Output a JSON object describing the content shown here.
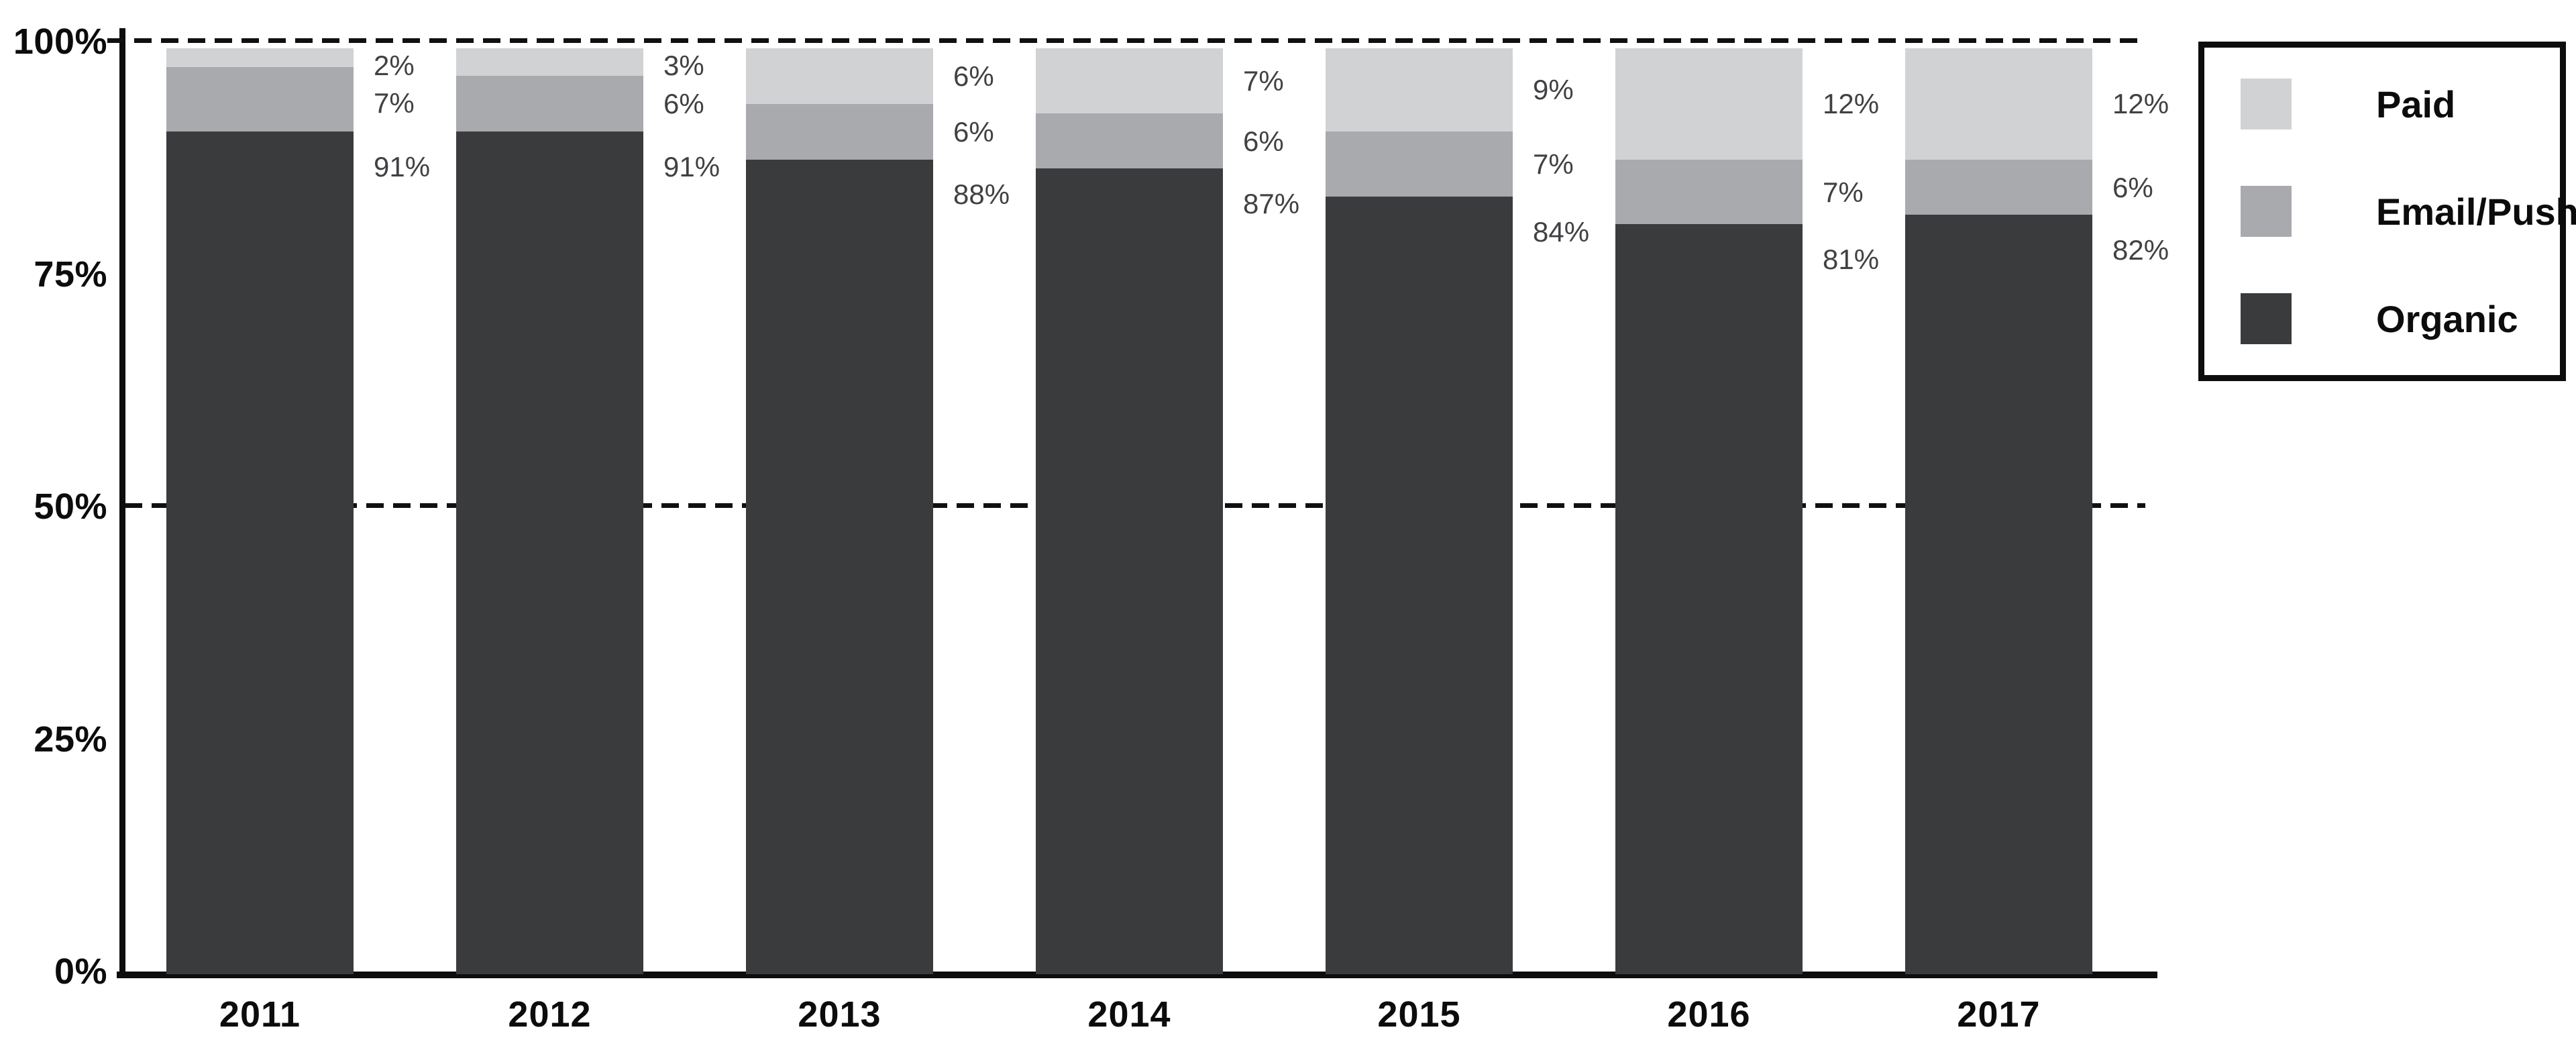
{
  "chart_data": {
    "type": "bar",
    "stacked": true,
    "orientation": "vertical",
    "categories": [
      "2011",
      "2012",
      "2013",
      "2014",
      "2015",
      "2016",
      "2017"
    ],
    "series": [
      {
        "name": "Paid",
        "color": "#d1d2d4",
        "values": [
          2,
          3,
          6,
          7,
          9,
          12,
          12
        ]
      },
      {
        "name": "Email/Push",
        "color": "#a8aaad",
        "values": [
          7,
          6,
          6,
          6,
          7,
          7,
          6
        ]
      },
      {
        "name": "Organic",
        "color": "#3a3b3d",
        "values": [
          91,
          91,
          88,
          87,
          84,
          81,
          82
        ]
      }
    ],
    "data_label_suffix": "%",
    "data_labels_position": "right of each bar",
    "y_axis": {
      "tick_labels": [
        "0%",
        "25%",
        "50%",
        "75%",
        "100%"
      ],
      "tick_values": [
        0,
        25,
        50,
        75,
        100
      ],
      "range": [
        0,
        100
      ],
      "dashed_gridlines_at": [
        50,
        100
      ]
    },
    "x_axis": {
      "label": "",
      "tick_labels": [
        "2011",
        "2012",
        "2013",
        "2014",
        "2015",
        "2016",
        "2017"
      ]
    },
    "legend": {
      "position": "top-right",
      "border": true,
      "items": [
        "Paid",
        "Email/Push",
        "Organic"
      ]
    },
    "title": "",
    "colors": {
      "axis": "#0d0d0d",
      "tick_label_text": "#0c0c0c",
      "data_label_text": "#414144",
      "background": "#ffffff"
    }
  }
}
